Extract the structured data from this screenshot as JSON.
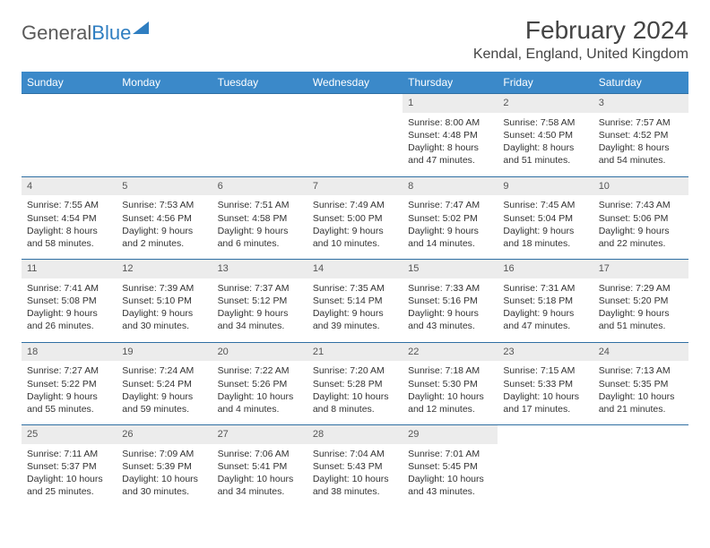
{
  "logo": {
    "part1": "General",
    "part2": "Blue"
  },
  "title": "February 2024",
  "location": "Kendal, England, United Kingdom",
  "colors": {
    "header_bg": "#3b89c9",
    "header_text": "#ffffff",
    "daynum_bg": "#ececec",
    "week_divider": "#2f6fa3",
    "brand_blue": "#2f7ec1",
    "text": "#333333"
  },
  "day_headers": [
    "Sunday",
    "Monday",
    "Tuesday",
    "Wednesday",
    "Thursday",
    "Friday",
    "Saturday"
  ],
  "weeks": [
    [
      {
        "empty": true
      },
      {
        "empty": true
      },
      {
        "empty": true
      },
      {
        "empty": true
      },
      {
        "num": "1",
        "sunrise": "Sunrise: 8:00 AM",
        "sunset": "Sunset: 4:48 PM",
        "day1": "Daylight: 8 hours",
        "day2": "and 47 minutes."
      },
      {
        "num": "2",
        "sunrise": "Sunrise: 7:58 AM",
        "sunset": "Sunset: 4:50 PM",
        "day1": "Daylight: 8 hours",
        "day2": "and 51 minutes."
      },
      {
        "num": "3",
        "sunrise": "Sunrise: 7:57 AM",
        "sunset": "Sunset: 4:52 PM",
        "day1": "Daylight: 8 hours",
        "day2": "and 54 minutes."
      }
    ],
    [
      {
        "num": "4",
        "sunrise": "Sunrise: 7:55 AM",
        "sunset": "Sunset: 4:54 PM",
        "day1": "Daylight: 8 hours",
        "day2": "and 58 minutes."
      },
      {
        "num": "5",
        "sunrise": "Sunrise: 7:53 AM",
        "sunset": "Sunset: 4:56 PM",
        "day1": "Daylight: 9 hours",
        "day2": "and 2 minutes."
      },
      {
        "num": "6",
        "sunrise": "Sunrise: 7:51 AM",
        "sunset": "Sunset: 4:58 PM",
        "day1": "Daylight: 9 hours",
        "day2": "and 6 minutes."
      },
      {
        "num": "7",
        "sunrise": "Sunrise: 7:49 AM",
        "sunset": "Sunset: 5:00 PM",
        "day1": "Daylight: 9 hours",
        "day2": "and 10 minutes."
      },
      {
        "num": "8",
        "sunrise": "Sunrise: 7:47 AM",
        "sunset": "Sunset: 5:02 PM",
        "day1": "Daylight: 9 hours",
        "day2": "and 14 minutes."
      },
      {
        "num": "9",
        "sunrise": "Sunrise: 7:45 AM",
        "sunset": "Sunset: 5:04 PM",
        "day1": "Daylight: 9 hours",
        "day2": "and 18 minutes."
      },
      {
        "num": "10",
        "sunrise": "Sunrise: 7:43 AM",
        "sunset": "Sunset: 5:06 PM",
        "day1": "Daylight: 9 hours",
        "day2": "and 22 minutes."
      }
    ],
    [
      {
        "num": "11",
        "sunrise": "Sunrise: 7:41 AM",
        "sunset": "Sunset: 5:08 PM",
        "day1": "Daylight: 9 hours",
        "day2": "and 26 minutes."
      },
      {
        "num": "12",
        "sunrise": "Sunrise: 7:39 AM",
        "sunset": "Sunset: 5:10 PM",
        "day1": "Daylight: 9 hours",
        "day2": "and 30 minutes."
      },
      {
        "num": "13",
        "sunrise": "Sunrise: 7:37 AM",
        "sunset": "Sunset: 5:12 PM",
        "day1": "Daylight: 9 hours",
        "day2": "and 34 minutes."
      },
      {
        "num": "14",
        "sunrise": "Sunrise: 7:35 AM",
        "sunset": "Sunset: 5:14 PM",
        "day1": "Daylight: 9 hours",
        "day2": "and 39 minutes."
      },
      {
        "num": "15",
        "sunrise": "Sunrise: 7:33 AM",
        "sunset": "Sunset: 5:16 PM",
        "day1": "Daylight: 9 hours",
        "day2": "and 43 minutes."
      },
      {
        "num": "16",
        "sunrise": "Sunrise: 7:31 AM",
        "sunset": "Sunset: 5:18 PM",
        "day1": "Daylight: 9 hours",
        "day2": "and 47 minutes."
      },
      {
        "num": "17",
        "sunrise": "Sunrise: 7:29 AM",
        "sunset": "Sunset: 5:20 PM",
        "day1": "Daylight: 9 hours",
        "day2": "and 51 minutes."
      }
    ],
    [
      {
        "num": "18",
        "sunrise": "Sunrise: 7:27 AM",
        "sunset": "Sunset: 5:22 PM",
        "day1": "Daylight: 9 hours",
        "day2": "and 55 minutes."
      },
      {
        "num": "19",
        "sunrise": "Sunrise: 7:24 AM",
        "sunset": "Sunset: 5:24 PM",
        "day1": "Daylight: 9 hours",
        "day2": "and 59 minutes."
      },
      {
        "num": "20",
        "sunrise": "Sunrise: 7:22 AM",
        "sunset": "Sunset: 5:26 PM",
        "day1": "Daylight: 10 hours",
        "day2": "and 4 minutes."
      },
      {
        "num": "21",
        "sunrise": "Sunrise: 7:20 AM",
        "sunset": "Sunset: 5:28 PM",
        "day1": "Daylight: 10 hours",
        "day2": "and 8 minutes."
      },
      {
        "num": "22",
        "sunrise": "Sunrise: 7:18 AM",
        "sunset": "Sunset: 5:30 PM",
        "day1": "Daylight: 10 hours",
        "day2": "and 12 minutes."
      },
      {
        "num": "23",
        "sunrise": "Sunrise: 7:15 AM",
        "sunset": "Sunset: 5:33 PM",
        "day1": "Daylight: 10 hours",
        "day2": "and 17 minutes."
      },
      {
        "num": "24",
        "sunrise": "Sunrise: 7:13 AM",
        "sunset": "Sunset: 5:35 PM",
        "day1": "Daylight: 10 hours",
        "day2": "and 21 minutes."
      }
    ],
    [
      {
        "num": "25",
        "sunrise": "Sunrise: 7:11 AM",
        "sunset": "Sunset: 5:37 PM",
        "day1": "Daylight: 10 hours",
        "day2": "and 25 minutes."
      },
      {
        "num": "26",
        "sunrise": "Sunrise: 7:09 AM",
        "sunset": "Sunset: 5:39 PM",
        "day1": "Daylight: 10 hours",
        "day2": "and 30 minutes."
      },
      {
        "num": "27",
        "sunrise": "Sunrise: 7:06 AM",
        "sunset": "Sunset: 5:41 PM",
        "day1": "Daylight: 10 hours",
        "day2": "and 34 minutes."
      },
      {
        "num": "28",
        "sunrise": "Sunrise: 7:04 AM",
        "sunset": "Sunset: 5:43 PM",
        "day1": "Daylight: 10 hours",
        "day2": "and 38 minutes."
      },
      {
        "num": "29",
        "sunrise": "Sunrise: 7:01 AM",
        "sunset": "Sunset: 5:45 PM",
        "day1": "Daylight: 10 hours",
        "day2": "and 43 minutes."
      },
      {
        "empty": true
      },
      {
        "empty": true
      }
    ]
  ]
}
